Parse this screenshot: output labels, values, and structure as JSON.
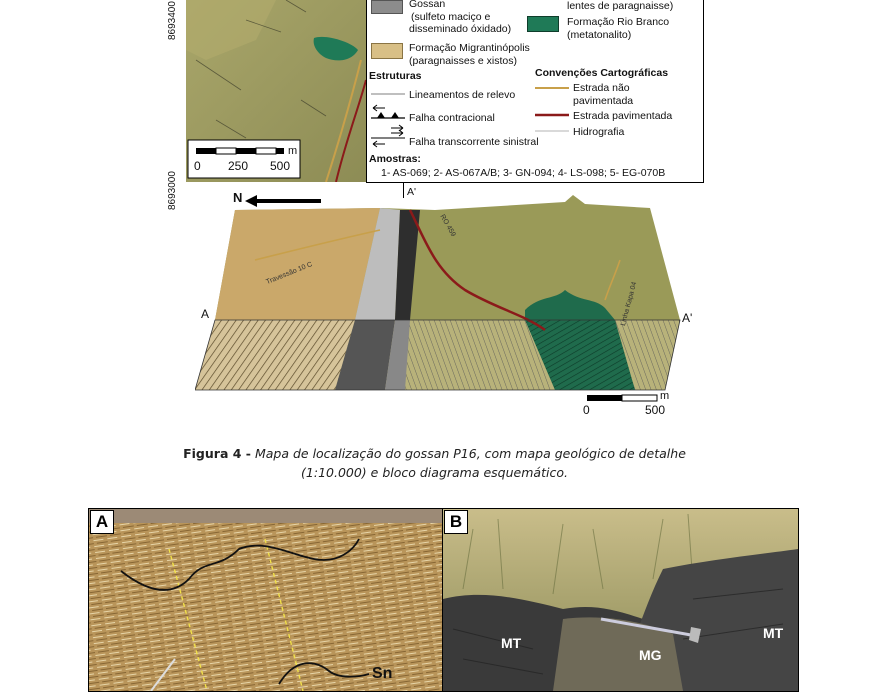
{
  "map": {
    "coord_upper": "8693400",
    "coord_lower": "8693000",
    "scale_unit": "m",
    "scale_ticks": [
      "0",
      "250",
      "500"
    ]
  },
  "legend": {
    "gossan_title": "Gossan",
    "gossan_desc1": "(sulfeto maciço e",
    "gossan_desc2": "disseminado óxidado)",
    "migrantinopolis_title": "Formação Migrantinópolis",
    "migrantinopolis_desc": "(paragnaisses e xistos)",
    "paragnaisse_lenses": "lentes de paragnaisse)",
    "rio_branco_title": "Formação Rio Branco",
    "rio_branco_desc": "(metatonalito)",
    "estruturas_title": "Estruturas",
    "lineamentos": "Lineamentos de relevo",
    "falha_contracional": "Falha contracional",
    "falha_transcorrente": "Falha transcorrente sinistral",
    "convencoes_title": "Convenções Cartográficas",
    "estrada_nao_1": "Estrada não",
    "estrada_nao_2": "pavimentada",
    "estrada_pav": "Estrada pavimentada",
    "hidrografia": "Hidrografia",
    "amostras_title": "Amostras:",
    "amostras_line": "1- AS-069;  2- AS-067A/B;  3- GN-094;  4- LS-098;  5- EG-070B",
    "colors": {
      "gossan": "#8c8c8c",
      "migrantinopolis": "#d8bf86",
      "rio_branco": "#1f7a57",
      "road_unpaved": "#c8a04a",
      "road_paved": "#8b1a1a"
    }
  },
  "block": {
    "north": "N",
    "label_a": "A",
    "label_a_prime": "A'",
    "label_a_prime_top": "A'",
    "road_label_1": "Travessão 10 C",
    "road_label_2": "RO 459",
    "road_label_3": "Linha Kapa 04",
    "scale_unit": "m",
    "scale_ticks": [
      "0",
      "500"
    ]
  },
  "caption": {
    "label": "Figura 4 -",
    "line1": "Mapa de localização do gossan P16, com mapa geológico de detalhe",
    "line2": "(1:10.000) e bloco diagrama esquemático."
  },
  "photos": {
    "a_label": "A",
    "b_label": "B",
    "sn_label": "Sn",
    "mt_left": "MT",
    "mg": "MG",
    "mt_right": "MT"
  }
}
